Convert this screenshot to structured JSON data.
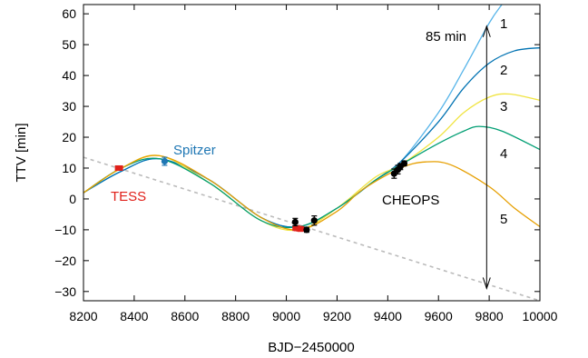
{
  "chart_data": {
    "type": "line",
    "title": "",
    "xlabel": "BJD−2450000",
    "ylabel": "TTV [min]",
    "xlim": [
      8200,
      10000
    ],
    "ylim": [
      -33,
      63
    ],
    "x_ticks": [
      8200,
      8400,
      8600,
      8800,
      9000,
      9200,
      9400,
      9600,
      9800,
      10000
    ],
    "y_ticks": [
      -30,
      -20,
      -10,
      0,
      10,
      20,
      30,
      40,
      50,
      60
    ],
    "x_tick_labels": [
      "8200",
      "8400",
      "8600",
      "8800",
      "9000",
      "9200",
      "9400",
      "9600",
      "9800",
      "10000"
    ],
    "y_tick_labels": [
      "−30",
      "−20",
      "−10",
      "0",
      "10",
      "20",
      "30",
      "40",
      "50",
      "60"
    ],
    "grid": false,
    "series": [
      {
        "name": "1",
        "color": "#56b4e9",
        "x": [
          8200,
          8350,
          8500,
          8700,
          8900,
          9050,
          9200,
          9350,
          9450,
          9600,
          9700,
          9800,
          9850
        ],
        "y": [
          2,
          9,
          13,
          6,
          -6,
          -9,
          -3,
          6,
          12,
          28,
          42,
          57,
          63
        ]
      },
      {
        "name": "2",
        "color": "#0072b2",
        "x": [
          8200,
          8350,
          8500,
          8700,
          8900,
          9050,
          9200,
          9350,
          9450,
          9600,
          9700,
          9800,
          9900,
          10000
        ],
        "y": [
          2,
          9,
          13,
          6,
          -6,
          -9,
          -3,
          6,
          12,
          25,
          36,
          44,
          48,
          49
        ]
      },
      {
        "name": "3",
        "color": "#f0e442",
        "x": [
          8200,
          8350,
          8500,
          8700,
          8900,
          9050,
          9200,
          9350,
          9450,
          9600,
          9700,
          9800,
          9880,
          10000
        ],
        "y": [
          2,
          10,
          14,
          5,
          -7,
          -10,
          -3,
          7,
          11,
          20,
          28,
          33,
          34,
          32
        ]
      },
      {
        "name": "4",
        "color": "#009e73",
        "x": [
          8200,
          8350,
          8500,
          8700,
          8900,
          9050,
          9200,
          9350,
          9450,
          9600,
          9700,
          9760,
          9850,
          10000
        ],
        "y": [
          2,
          10,
          13,
          5,
          -7,
          -9,
          -3,
          6,
          11,
          18,
          22,
          23.5,
          22,
          16
        ]
      },
      {
        "name": "5",
        "color": "#e69f00",
        "x": [
          8200,
          8350,
          8500,
          8700,
          8900,
          9050,
          9200,
          9300,
          9450,
          9550,
          9650,
          9800,
          9900,
          10000
        ],
        "y": [
          2,
          10,
          14,
          6,
          -6,
          -10,
          -4,
          3,
          10,
          12,
          11,
          4,
          -3,
          -9
        ]
      }
    ],
    "linear_ephemeris": {
      "color": "#bbbbbb",
      "x": [
        8200,
        10000
      ],
      "y": [
        13.5,
        -33
      ]
    },
    "data_points": [
      {
        "group": "TESS",
        "color": "#e0201a",
        "x": 8340,
        "y": 10,
        "err": 0.7
      },
      {
        "group": "TESS",
        "color": "#e0201a",
        "x": 9040,
        "y": -9.5,
        "err": 0.8
      },
      {
        "group": "TESS",
        "color": "#e0201a",
        "x": 9055,
        "y": -9.7,
        "err": 0.8
      },
      {
        "group": "Spitzer",
        "color": "#1f77b4",
        "x": 8520,
        "y": 12.2,
        "err": 1.3
      },
      {
        "group": "CHEOPS",
        "color": "#000000",
        "x": 9035,
        "y": -7.5,
        "err": 1.2
      },
      {
        "group": "CHEOPS",
        "color": "#000000",
        "x": 9080,
        "y": -10,
        "err": 0.8
      },
      {
        "group": "CHEOPS",
        "color": "#000000",
        "x": 9110,
        "y": -7,
        "err": 1.5
      },
      {
        "group": "CHEOPS",
        "color": "#000000",
        "x": 9425,
        "y": 8.2,
        "err": 1.5
      },
      {
        "group": "CHEOPS",
        "color": "#000000",
        "x": 9440,
        "y": 9.5,
        "err": 1.4
      },
      {
        "group": "CHEOPS",
        "color": "#000000",
        "x": 9450,
        "y": 10.5,
        "err": 1.0
      },
      {
        "group": "CHEOPS",
        "color": "#000000",
        "x": 9465,
        "y": 11.5,
        "err": 0.8
      }
    ],
    "labels": {
      "tess": {
        "text": "TESS",
        "color": "#e0201a"
      },
      "spitzer": {
        "text": "Spitzer",
        "color": "#1f77b4"
      },
      "cheops": {
        "text": "CHEOPS",
        "color": "#000000"
      },
      "range": {
        "text": "85 min",
        "color": "#000000"
      }
    },
    "series_labels": [
      "1",
      "2",
      "3",
      "4",
      "5"
    ],
    "range_arrow": {
      "x": 9790,
      "y_top": 56,
      "y_bottom": -29
    }
  }
}
